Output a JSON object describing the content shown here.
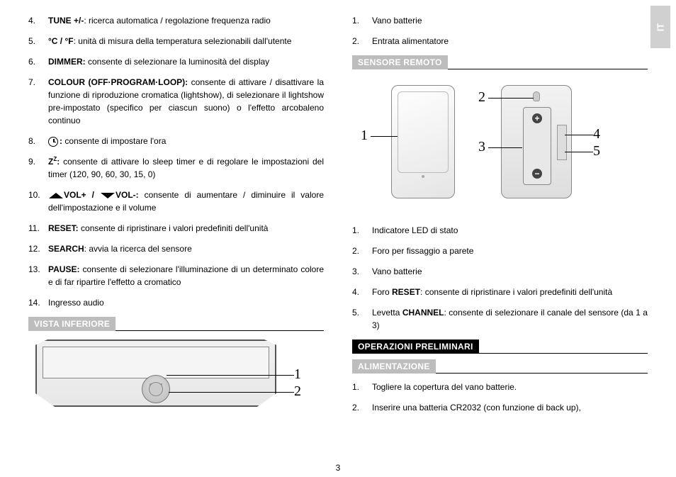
{
  "side_tab": "IT",
  "page_number": "3",
  "left": {
    "items": [
      {
        "n": "4.",
        "bold": "TUNE +/-",
        "rest": ": ricerca automatica / regolazione frequenza radio"
      },
      {
        "n": "5.",
        "bold": "°C / °F",
        "rest": ": unità di misura della temperatura selezionabili dall'utente"
      },
      {
        "n": "6.",
        "bold": "DIMMER:",
        "rest": " consente di selezionare la luminosità del display"
      },
      {
        "n": "7.",
        "bold": "COLOUR (OFF·PROGRAM·LOOP):",
        "rest": " consente di attivare / disattivare la funzione di riproduzione cromatica (lightshow), di selezionare il lightshow pre-impostato (specifico per ciascun suono) o l'effetto arcobaleno continuo"
      },
      {
        "n": "8.",
        "type": "clock",
        "rest": " consente di impostare l'ora"
      },
      {
        "n": "9.",
        "type": "zz",
        "rest": " consente di attivare lo sleep timer e di regolare le impostazioni del timer (120, 90, 60, 30, 15, 0)"
      },
      {
        "n": "10.",
        "type": "vol",
        "bold_a": "VOL+ / ",
        "bold_b": "VOL-:",
        "rest": " consente di aumentare / diminuire il valore dell'impostazione e il volume"
      },
      {
        "n": "11.",
        "bold": "RESET:",
        "rest": " consente di ripristinare i valori predefiniti dell'unità"
      },
      {
        "n": "12.",
        "bold": "SEARCH",
        "rest": ": avvia la ricerca del sensore"
      },
      {
        "n": "13.",
        "bold": "PAUSE:",
        "rest": " consente di selezionare l'illuminazione di un determinato colore e di far ripartire l'effetto a cromatico"
      },
      {
        "n": "14.",
        "rest": "Ingresso audio"
      }
    ],
    "section_title": "VISTA INFERIORE",
    "fig_labels": [
      "1",
      "2"
    ],
    "fig_cr": "CR2032"
  },
  "right": {
    "top_items": [
      {
        "n": "1.",
        "rest": "Vano batterie"
      },
      {
        "n": "2.",
        "rest": "Entrata alimentatore"
      }
    ],
    "section_sensor": "SENSORE REMOTO",
    "sensor_labels": [
      "1",
      "2",
      "3",
      "4",
      "5"
    ],
    "sensor_items": [
      {
        "n": "1.",
        "rest": "Indicatore LED di stato"
      },
      {
        "n": "2.",
        "rest": "Foro per fissaggio a parete"
      },
      {
        "n": "3.",
        "rest": "Vano batterie"
      },
      {
        "n": "4.",
        "pre": "Foro ",
        "bold": "RESET",
        "rest": ": consente di ripristinare i valori predefiniti dell'unità"
      },
      {
        "n": "5.",
        "pre": "Levetta ",
        "bold": "CHANNEL",
        "rest": ": consente di selezionare il canale del sensore (da 1 a 3)"
      }
    ],
    "section_ops": "OPERAZIONI PRELIMINARI",
    "section_power": "ALIMENTAZIONE",
    "power_items": [
      {
        "n": "1.",
        "rest": "Togliere la copertura del vano batterie."
      },
      {
        "n": "2.",
        "rest": "Inserire una batteria CR2032 (con funzione di back up),"
      }
    ]
  }
}
